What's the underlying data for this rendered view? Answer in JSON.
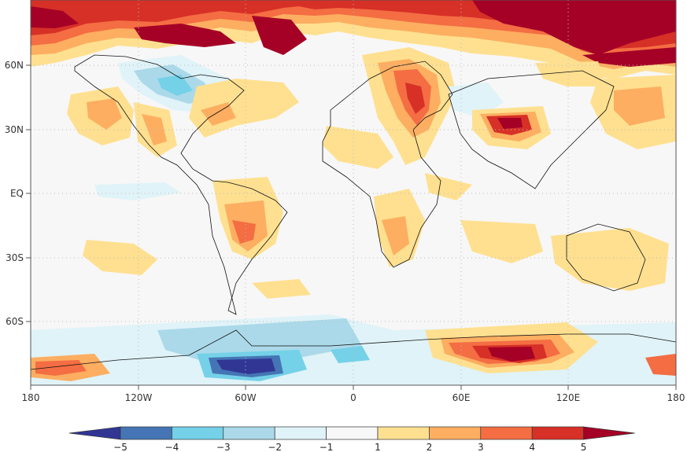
{
  "map": {
    "lon_ticks": [
      "180",
      "120W",
      "60W",
      "0",
      "60E",
      "120E",
      "180"
    ],
    "lat_ticks": [
      "60N",
      "30N",
      "EQ",
      "30S",
      "60S"
    ],
    "grid_lines": "dotted",
    "projection": "equirectangular"
  },
  "colorbar": {
    "labels": [
      "-5",
      "-4",
      "-3",
      "-2",
      "-1",
      "1",
      "2",
      "3",
      "4",
      "5"
    ],
    "colors": [
      "#313695",
      "#4575b4",
      "#74d1e8",
      "#abd9e9",
      "#e0f3f8",
      "#f7f7f7",
      "#fee090",
      "#fdae61",
      "#f46d43",
      "#d73027",
      "#a50026"
    ],
    "extend": "both"
  },
  "colors": {
    "background_field": "#f7f7f7",
    "coastline": "#111111",
    "grid": "#cccccc"
  }
}
